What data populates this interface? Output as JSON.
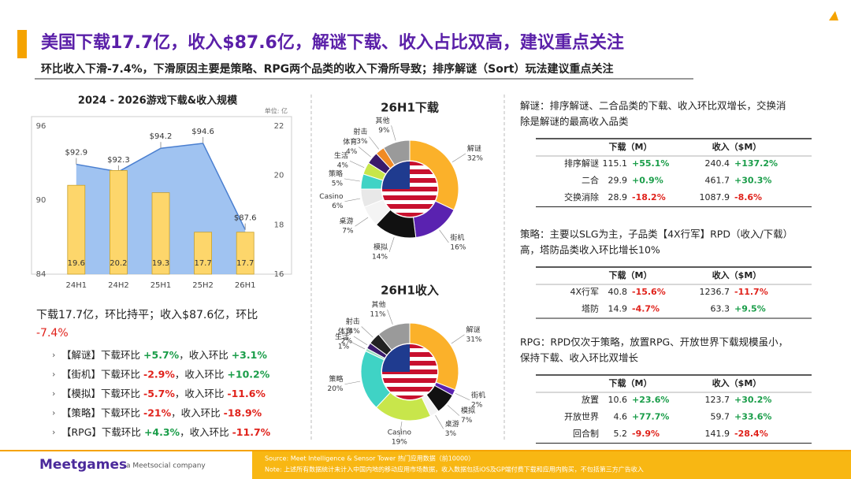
{
  "header": {
    "title": "美国下载17.7亿，收入$87.6亿，解谜下载、收入占比双高，建议重点关注",
    "subtitle": "环比收入下滑-7.4%，下滑原因主要是策略、RPG两个品类的收入下滑所导致；排序解谜（Sort）玩法建议重点关注"
  },
  "chart_data": [
    {
      "type": "combo",
      "title": "2024 - 2026游戏下载&收入规模",
      "unit": "单位: 亿",
      "categories": [
        "24H1",
        "24H2",
        "25H1",
        "25H2",
        "26H1"
      ],
      "series": [
        {
          "type": "area",
          "color": "#8fb8ee",
          "values": [
            92.9,
            92.3,
            94.2,
            94.6,
            87.6
          ],
          "value_labels": [
            "$92.9",
            "$92.3",
            "$94.2",
            "$94.6",
            "$87.6"
          ]
        },
        {
          "type": "bar",
          "axis": "y2",
          "color": "#fdd66b",
          "values": [
            19.6,
            20.2,
            19.3,
            17.7,
            17.7
          ]
        }
      ],
      "ylim": [
        84,
        96
      ],
      "yticks": [
        84,
        90,
        96
      ],
      "y2lim": [
        16,
        22
      ],
      "y2ticks": [
        16,
        18,
        20,
        22
      ]
    },
    {
      "type": "pie",
      "title": "26H1下载",
      "categories": [
        "解谜",
        "街机",
        "模拟",
        "桌游",
        "Casino",
        "策略",
        "生活",
        "体育",
        "射击",
        "其他"
      ],
      "values": [
        32,
        16,
        14,
        7,
        6,
        5,
        4,
        4,
        3,
        9
      ],
      "value_labels": [
        "32%",
        "16%",
        "14%",
        "7%",
        "6%",
        "5%",
        "4%",
        "4%",
        "3%",
        "9%"
      ],
      "colors": [
        "#fbb12a",
        "#5a22b0",
        "#111111",
        "#f4f4f4",
        "#e8e8e8",
        "#3fd3c5",
        "#c8e64b",
        "#3a1a6b",
        "#f08a24",
        "#9a9a9a"
      ]
    },
    {
      "type": "pie",
      "title": "26H1收入",
      "categories": [
        "解谜",
        "街机",
        "模拟",
        "桌游",
        "Casino",
        "策略",
        "生活",
        "体育",
        "射击",
        "其他"
      ],
      "values": [
        31,
        2,
        7,
        3,
        19,
        20,
        1,
        2,
        4,
        11
      ],
      "value_labels": [
        "31%",
        "2%",
        "7%",
        "3%",
        "19%",
        "20%",
        "1%",
        "2%",
        "4%",
        "11%"
      ],
      "colors": [
        "#fbb12a",
        "#5a22b0",
        "#111111",
        "#f4f4f4",
        "#c8e64b",
        "#3fd3c5",
        "#9be0c0",
        "#3a1a6b",
        "#222222",
        "#9a9a9a"
      ]
    }
  ],
  "summary": {
    "text": "下载17.7亿，环比持平；收入$87.6亿，环比",
    "change": "-7.4%"
  },
  "bullets": [
    {
      "genre": "【解谜】",
      "dl_text": "下载环比",
      "dl_change": "+5.7%",
      "rev_text": "，收入环比",
      "rev_change": "+3.1%"
    },
    {
      "genre": "【街机】",
      "dl_text": "下载环比",
      "dl_change": "-2.9%",
      "rev_text": "，收入环比",
      "rev_change": "+10.2%"
    },
    {
      "genre": "【模拟】",
      "dl_text": "下载环比",
      "dl_change": "-5.7%",
      "rev_text": "，收入环比",
      "rev_change": "-11.6%"
    },
    {
      "genre": "【策略】",
      "dl_text": "下载环比",
      "dl_change": "-21%",
      "rev_text": "，收入环比",
      "rev_change": "-18.9%"
    },
    {
      "genre": "【RPG】",
      "dl_text": "下载环比",
      "dl_change": "+4.3%",
      "rev_text": "，收入环比",
      "rev_change": "-11.7%"
    }
  ],
  "sections": [
    {
      "text": [
        "解谜：排序解谜、二合品类的下载、收入环比双增长，交换消",
        "除是解谜的最高收入品类"
      ],
      "table": {
        "header": [
          "下载（M）",
          "收入（$M）"
        ],
        "rows": [
          {
            "name": "排序解谜",
            "dl": "115.1",
            "dl_change": "+55.1%",
            "rev": "240.4",
            "rev_change": "+137.2%"
          },
          {
            "name": "二合",
            "dl": "29.9",
            "dl_change": "+0.9%",
            "rev": "461.7",
            "rev_change": "+30.3%"
          },
          {
            "name": "交换消除",
            "dl": "28.9",
            "dl_change": "-18.2%",
            "rev": "1087.9",
            "rev_change": "-8.6%"
          }
        ]
      }
    },
    {
      "text": [
        "策略：主要以SLG为主，子品类【4X行军】RPD（收入/下载）",
        "高，塔防品类收入环比增长10%"
      ],
      "table": {
        "header": [
          "下载（M）",
          "收入（$M）"
        ],
        "rows": [
          {
            "name": "4X行军",
            "dl": "40.8",
            "dl_change": "-15.6%",
            "rev": "1236.7",
            "rev_change": "-11.7%"
          },
          {
            "name": "塔防",
            "dl": "14.9",
            "dl_change": "-4.7%",
            "rev": "63.3",
            "rev_change": "+9.5%"
          }
        ]
      }
    },
    {
      "text": [
        "RPG：RPD仅次于策略，放置RPG、开放世界下载规模虽小，",
        "保持下载、收入环比双增长"
      ],
      "table": {
        "header": [
          "下载（M）",
          "收入（$M）"
        ],
        "rows": [
          {
            "name": "放置",
            "dl": "10.6",
            "dl_change": "+23.6%",
            "rev": "123.7",
            "rev_change": "+30.2%"
          },
          {
            "name": "开放世界",
            "dl": "4.6",
            "dl_change": "+77.7%",
            "rev": "59.7",
            "rev_change": "+33.6%"
          },
          {
            "name": "回合制",
            "dl": "5.2",
            "dl_change": "-9.9%",
            "rev": "141.9",
            "rev_change": "-28.4%"
          }
        ]
      }
    }
  ],
  "footer": {
    "logo": "Meetgames",
    "company": "a Meetsocial company",
    "source": "Source: Meet Intelligence & Sensor Tower 热门应用数据（前10000）",
    "note": "Note: 上述所有数据统计未计入中国内地的移动应用市场数据，收入数据包括iOS及GP端付费下载和应用内购买，不包括第三方广告收入"
  }
}
